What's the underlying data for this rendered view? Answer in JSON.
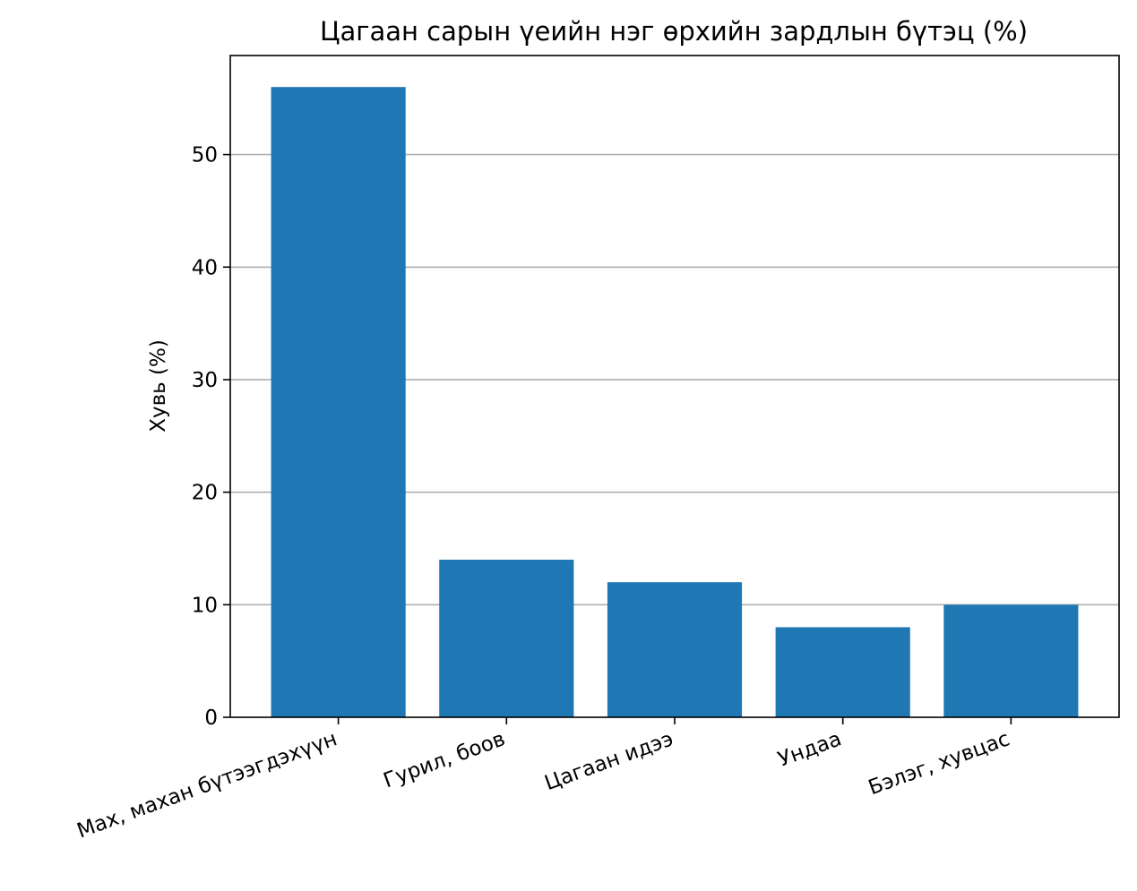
{
  "chart_data": {
    "type": "bar",
    "title": "Цагаан сарын үеийн нэг өрхийн зардлын бүтэц (%)",
    "xlabel": "",
    "ylabel": "Хувь (%)",
    "categories": [
      "Мах, махан бүтээгдэхүүн",
      "Гурил, боов",
      "Цагаан идээ",
      "Ундаа",
      "Бэлэг, хувцас"
    ],
    "values": [
      56,
      14,
      12,
      8,
      10
    ],
    "ylim": [
      0,
      58.8
    ],
    "yticks": [
      0,
      10,
      20,
      30,
      40,
      50
    ],
    "grid": "y",
    "bar_color": "#1f77b4",
    "grid_color": "#b0b0b0"
  }
}
